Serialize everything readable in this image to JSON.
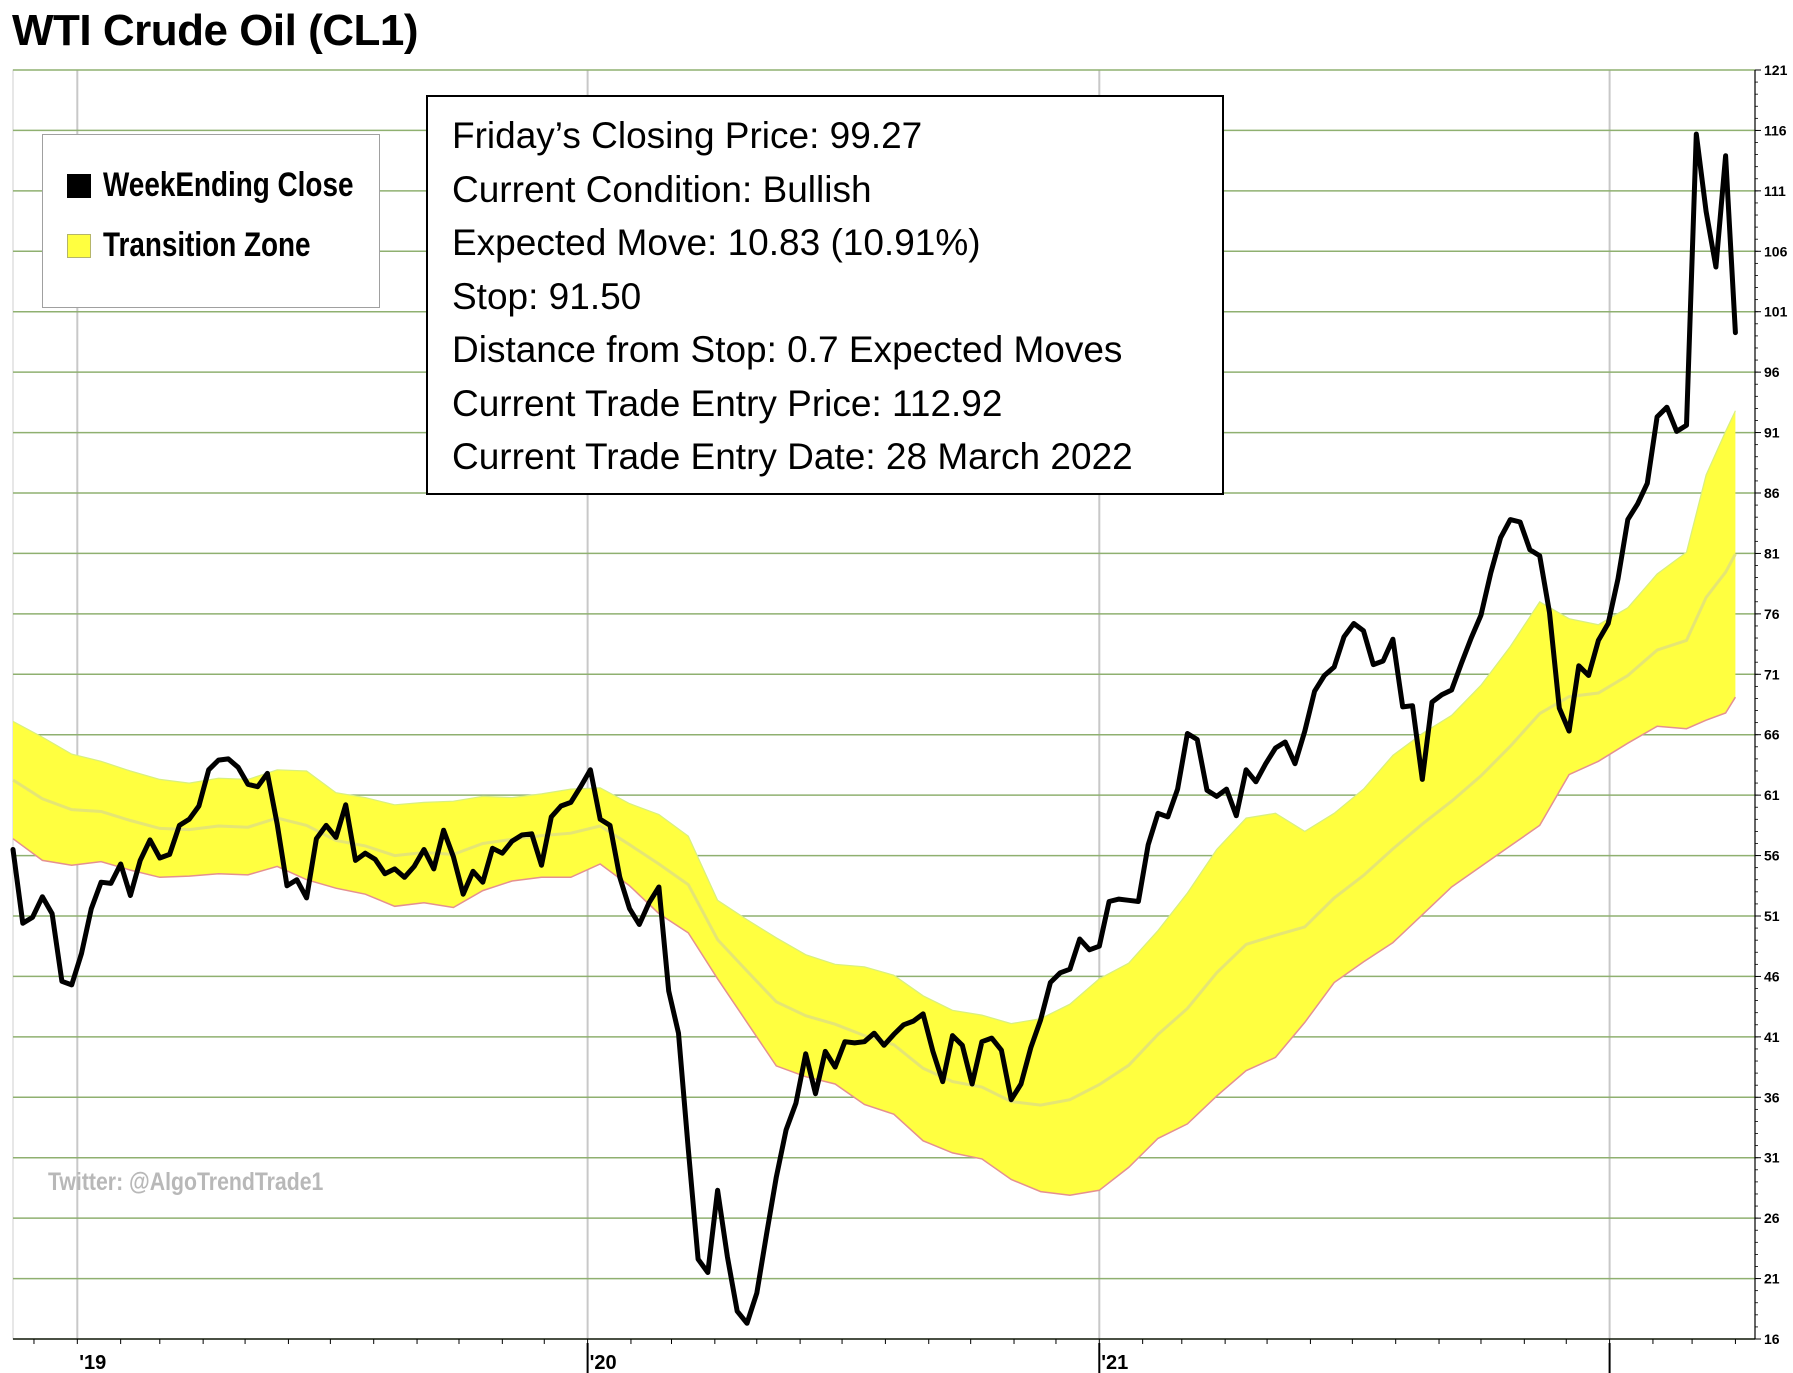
{
  "chart_data": {
    "type": "line",
    "title": "WTI Crude Oil (CL1)",
    "x_tick_labels": [
      "'19",
      "'20",
      "'21"
    ],
    "y_ticks": [
      16,
      21,
      26,
      31,
      36,
      41,
      46,
      51,
      56,
      61,
      66,
      71,
      76,
      81,
      86,
      91,
      96,
      101,
      106,
      111,
      116,
      121
    ],
    "ylim": [
      16,
      121
    ],
    "y_axis_position": "right",
    "grid": true,
    "legend_position": "top-left",
    "x_start": "2018-11-16",
    "x_end": "2022-04-15",
    "series": [
      {
        "name": "WeekEnding Close",
        "color": "#000000",
        "points": [
          [
            "2018-11-16",
            56.5
          ],
          [
            "2018-11-23",
            50.4
          ],
          [
            "2018-11-30",
            50.9
          ],
          [
            "2018-12-07",
            52.6
          ],
          [
            "2018-12-14",
            51.2
          ],
          [
            "2018-12-21",
            45.6
          ],
          [
            "2018-12-28",
            45.3
          ],
          [
            "2019-01-04",
            47.9
          ],
          [
            "2019-01-11",
            51.6
          ],
          [
            "2019-01-18",
            53.8
          ],
          [
            "2019-01-25",
            53.7
          ],
          [
            "2019-02-01",
            55.3
          ],
          [
            "2019-02-08",
            52.7
          ],
          [
            "2019-02-15",
            55.6
          ],
          [
            "2019-02-22",
            57.3
          ],
          [
            "2019-03-01",
            55.8
          ],
          [
            "2019-03-08",
            56.1
          ],
          [
            "2019-03-15",
            58.5
          ],
          [
            "2019-03-22",
            59.0
          ],
          [
            "2019-03-29",
            60.1
          ],
          [
            "2019-04-05",
            63.1
          ],
          [
            "2019-04-12",
            63.9
          ],
          [
            "2019-04-19",
            64.0
          ],
          [
            "2019-04-26",
            63.3
          ],
          [
            "2019-05-03",
            61.9
          ],
          [
            "2019-05-10",
            61.7
          ],
          [
            "2019-05-17",
            62.8
          ],
          [
            "2019-05-24",
            58.6
          ],
          [
            "2019-05-31",
            53.5
          ],
          [
            "2019-06-07",
            54.0
          ],
          [
            "2019-06-14",
            52.5
          ],
          [
            "2019-06-21",
            57.4
          ],
          [
            "2019-06-28",
            58.5
          ],
          [
            "2019-07-05",
            57.5
          ],
          [
            "2019-07-12",
            60.2
          ],
          [
            "2019-07-19",
            55.6
          ],
          [
            "2019-07-26",
            56.2
          ],
          [
            "2019-08-02",
            55.7
          ],
          [
            "2019-08-09",
            54.5
          ],
          [
            "2019-08-16",
            54.9
          ],
          [
            "2019-08-23",
            54.2
          ],
          [
            "2019-08-30",
            55.1
          ],
          [
            "2019-09-06",
            56.5
          ],
          [
            "2019-09-13",
            54.9
          ],
          [
            "2019-09-20",
            58.1
          ],
          [
            "2019-09-27",
            55.9
          ],
          [
            "2019-10-04",
            52.8
          ],
          [
            "2019-10-11",
            54.7
          ],
          [
            "2019-10-18",
            53.8
          ],
          [
            "2019-10-25",
            56.6
          ],
          [
            "2019-11-01",
            56.2
          ],
          [
            "2019-11-08",
            57.2
          ],
          [
            "2019-11-15",
            57.7
          ],
          [
            "2019-11-22",
            57.8
          ],
          [
            "2019-11-29",
            55.2
          ],
          [
            "2019-12-06",
            59.2
          ],
          [
            "2019-12-13",
            60.1
          ],
          [
            "2019-12-20",
            60.4
          ],
          [
            "2019-12-27",
            61.7
          ],
          [
            "2020-01-03",
            63.1
          ],
          [
            "2020-01-10",
            59.0
          ],
          [
            "2020-01-17",
            58.5
          ],
          [
            "2020-01-24",
            54.2
          ],
          [
            "2020-01-31",
            51.6
          ],
          [
            "2020-02-07",
            50.3
          ],
          [
            "2020-02-14",
            52.1
          ],
          [
            "2020-02-21",
            53.4
          ],
          [
            "2020-02-28",
            44.8
          ],
          [
            "2020-03-06",
            41.3
          ],
          [
            "2020-03-13",
            31.7
          ],
          [
            "2020-03-20",
            22.6
          ],
          [
            "2020-03-27",
            21.5
          ],
          [
            "2020-04-03",
            28.3
          ],
          [
            "2020-04-10",
            22.8
          ],
          [
            "2020-04-17",
            18.3
          ],
          [
            "2020-04-24",
            17.3
          ],
          [
            "2020-05-01",
            19.8
          ],
          [
            "2020-05-08",
            24.7
          ],
          [
            "2020-05-15",
            29.4
          ],
          [
            "2020-05-22",
            33.3
          ],
          [
            "2020-05-29",
            35.5
          ],
          [
            "2020-06-05",
            39.6
          ],
          [
            "2020-06-12",
            36.3
          ],
          [
            "2020-06-19",
            39.8
          ],
          [
            "2020-06-26",
            38.5
          ],
          [
            "2020-07-03",
            40.6
          ],
          [
            "2020-07-10",
            40.5
          ],
          [
            "2020-07-17",
            40.6
          ],
          [
            "2020-07-24",
            41.3
          ],
          [
            "2020-07-31",
            40.3
          ],
          [
            "2020-08-07",
            41.2
          ],
          [
            "2020-08-14",
            42.0
          ],
          [
            "2020-08-21",
            42.3
          ],
          [
            "2020-08-28",
            42.9
          ],
          [
            "2020-09-04",
            39.8
          ],
          [
            "2020-09-11",
            37.3
          ],
          [
            "2020-09-18",
            41.1
          ],
          [
            "2020-09-25",
            40.3
          ],
          [
            "2020-10-02",
            37.1
          ],
          [
            "2020-10-09",
            40.6
          ],
          [
            "2020-10-16",
            40.9
          ],
          [
            "2020-10-23",
            39.9
          ],
          [
            "2020-10-30",
            35.8
          ],
          [
            "2020-11-06",
            37.1
          ],
          [
            "2020-11-13",
            40.1
          ],
          [
            "2020-11-20",
            42.4
          ],
          [
            "2020-11-27",
            45.5
          ],
          [
            "2020-12-04",
            46.3
          ],
          [
            "2020-12-11",
            46.6
          ],
          [
            "2020-12-18",
            49.1
          ],
          [
            "2020-12-25",
            48.2
          ],
          [
            "2021-01-01",
            48.5
          ],
          [
            "2021-01-08",
            52.2
          ],
          [
            "2021-01-15",
            52.4
          ],
          [
            "2021-01-22",
            52.3
          ],
          [
            "2021-01-29",
            52.2
          ],
          [
            "2021-02-05",
            56.9
          ],
          [
            "2021-02-12",
            59.5
          ],
          [
            "2021-02-19",
            59.2
          ],
          [
            "2021-02-26",
            61.5
          ],
          [
            "2021-03-05",
            66.1
          ],
          [
            "2021-03-12",
            65.6
          ],
          [
            "2021-03-19",
            61.4
          ],
          [
            "2021-03-26",
            60.9
          ],
          [
            "2021-04-02",
            61.5
          ],
          [
            "2021-04-09",
            59.3
          ],
          [
            "2021-04-16",
            63.1
          ],
          [
            "2021-04-23",
            62.1
          ],
          [
            "2021-04-30",
            63.6
          ],
          [
            "2021-05-07",
            64.9
          ],
          [
            "2021-05-14",
            65.4
          ],
          [
            "2021-05-21",
            63.6
          ],
          [
            "2021-05-28",
            66.3
          ],
          [
            "2021-06-04",
            69.6
          ],
          [
            "2021-06-11",
            70.9
          ],
          [
            "2021-06-18",
            71.6
          ],
          [
            "2021-06-25",
            74.1
          ],
          [
            "2021-07-02",
            75.2
          ],
          [
            "2021-07-09",
            74.6
          ],
          [
            "2021-07-16",
            71.8
          ],
          [
            "2021-07-23",
            72.1
          ],
          [
            "2021-07-30",
            73.9
          ],
          [
            "2021-08-06",
            68.3
          ],
          [
            "2021-08-13",
            68.4
          ],
          [
            "2021-08-20",
            62.3
          ],
          [
            "2021-08-27",
            68.7
          ],
          [
            "2021-09-03",
            69.3
          ],
          [
            "2021-09-10",
            69.7
          ],
          [
            "2021-09-17",
            71.9
          ],
          [
            "2021-09-24",
            74.0
          ],
          [
            "2021-10-01",
            75.9
          ],
          [
            "2021-10-08",
            79.4
          ],
          [
            "2021-10-15",
            82.3
          ],
          [
            "2021-10-22",
            83.8
          ],
          [
            "2021-10-29",
            83.6
          ],
          [
            "2021-11-05",
            81.3
          ],
          [
            "2021-11-12",
            80.8
          ],
          [
            "2021-11-19",
            76.1
          ],
          [
            "2021-11-26",
            68.2
          ],
          [
            "2021-12-03",
            66.3
          ],
          [
            "2021-12-10",
            71.7
          ],
          [
            "2021-12-17",
            70.9
          ],
          [
            "2021-12-24",
            73.8
          ],
          [
            "2021-12-31",
            75.2
          ],
          [
            "2022-01-07",
            78.9
          ],
          [
            "2022-01-14",
            83.8
          ],
          [
            "2022-01-21",
            85.1
          ],
          [
            "2022-01-28",
            86.8
          ],
          [
            "2022-02-04",
            92.3
          ],
          [
            "2022-02-11",
            93.1
          ],
          [
            "2022-02-18",
            91.1
          ],
          [
            "2022-02-25",
            91.6
          ],
          [
            "2022-03-04",
            115.7
          ],
          [
            "2022-03-11",
            109.3
          ],
          [
            "2022-03-18",
            104.7
          ],
          [
            "2022-03-25",
            113.9
          ],
          [
            "2022-04-01",
            99.27
          ]
        ]
      },
      {
        "name": "Transition Zone",
        "color": "#ffff40",
        "points": [
          [
            "2018-11-16",
            57.4,
            67.1
          ],
          [
            "2018-12-07",
            55.6,
            65.8
          ],
          [
            "2018-12-28",
            55.2,
            64.4
          ],
          [
            "2019-01-18",
            55.5,
            63.8
          ],
          [
            "2019-02-08",
            54.8,
            63.0
          ],
          [
            "2019-03-01",
            54.2,
            62.3
          ],
          [
            "2019-03-22",
            54.3,
            62.0
          ],
          [
            "2019-04-12",
            54.5,
            62.4
          ],
          [
            "2019-05-03",
            54.4,
            62.3
          ],
          [
            "2019-05-24",
            55.1,
            63.1
          ],
          [
            "2019-06-14",
            54.0,
            63.0
          ],
          [
            "2019-07-05",
            53.3,
            61.2
          ],
          [
            "2019-07-26",
            52.8,
            60.8
          ],
          [
            "2019-08-16",
            51.8,
            60.2
          ],
          [
            "2019-09-06",
            52.1,
            60.4
          ],
          [
            "2019-09-27",
            51.7,
            60.5
          ],
          [
            "2019-10-18",
            53.1,
            60.9
          ],
          [
            "2019-11-08",
            53.9,
            60.8
          ],
          [
            "2019-11-29",
            54.2,
            61.1
          ],
          [
            "2019-12-20",
            54.2,
            61.5
          ],
          [
            "2020-01-10",
            55.3,
            61.6
          ],
          [
            "2020-01-31",
            53.5,
            60.3
          ],
          [
            "2020-02-21",
            51.2,
            59.4
          ],
          [
            "2020-03-13",
            49.6,
            57.6
          ],
          [
            "2020-04-03",
            45.8,
            52.3
          ],
          [
            "2020-04-24",
            42.2,
            50.7
          ],
          [
            "2020-05-15",
            38.6,
            49.2
          ],
          [
            "2020-06-05",
            37.7,
            47.8
          ],
          [
            "2020-06-26",
            37.1,
            47.0
          ],
          [
            "2020-07-17",
            35.4,
            46.8
          ],
          [
            "2020-08-07",
            34.6,
            46.1
          ],
          [
            "2020-08-28",
            32.4,
            44.4
          ],
          [
            "2020-09-18",
            31.4,
            43.2
          ],
          [
            "2020-10-09",
            30.9,
            42.8
          ],
          [
            "2020-10-30",
            29.2,
            42.1
          ],
          [
            "2020-11-20",
            28.2,
            42.5
          ],
          [
            "2020-12-11",
            27.9,
            43.7
          ],
          [
            "2021-01-01",
            28.3,
            45.8
          ],
          [
            "2021-01-22",
            30.2,
            47.1
          ],
          [
            "2021-02-12",
            32.6,
            49.8
          ],
          [
            "2021-03-05",
            33.8,
            52.9
          ],
          [
            "2021-03-26",
            36.1,
            56.5
          ],
          [
            "2021-04-16",
            38.2,
            59.1
          ],
          [
            "2021-05-07",
            39.3,
            59.5
          ],
          [
            "2021-05-28",
            42.2,
            58.0
          ],
          [
            "2021-06-18",
            45.5,
            59.5
          ],
          [
            "2021-07-09",
            47.2,
            61.5
          ],
          [
            "2021-07-30",
            48.8,
            64.3
          ],
          [
            "2021-08-20",
            51.1,
            66.1
          ],
          [
            "2021-09-10",
            53.4,
            67.6
          ],
          [
            "2021-10-01",
            55.1,
            70.1
          ],
          [
            "2021-10-22",
            56.8,
            73.3
          ],
          [
            "2021-11-12",
            58.5,
            77.0
          ],
          [
            "2021-12-03",
            62.7,
            75.6
          ],
          [
            "2021-12-24",
            63.8,
            75.1
          ],
          [
            "2022-01-14",
            65.3,
            76.5
          ],
          [
            "2022-02-04",
            66.7,
            79.3
          ],
          [
            "2022-02-25",
            66.5,
            81.1
          ],
          [
            "2022-03-11",
            67.2,
            87.5
          ],
          [
            "2022-03-25",
            67.8,
            91.1
          ],
          [
            "2022-04-01",
            69.1,
            92.8
          ]
        ]
      }
    ]
  },
  "legend": {
    "items": [
      {
        "label": "WeekEnding Close",
        "swatch_color": "#000000"
      },
      {
        "label": "Transition Zone",
        "swatch_color": "#ffff40"
      }
    ]
  },
  "info_box": {
    "lines": [
      "Friday’s Closing Price: 99.27",
      "Current Condition: Bullish",
      "Expected Move: 10.83 (10.91%)",
      "Stop: 91.50",
      "Distance from Stop: 0.7 Expected Moves",
      "Current Trade Entry Price: 112.92",
      "Current Trade Entry Date: 28 March 2022"
    ]
  },
  "watermark": "Twitter: @AlgoTrendTrade1",
  "colors": {
    "grid_horizontal": "#8fb070",
    "grid_vertical": "#c8c8c8",
    "band_fill": "#ffff40",
    "band_edge": "#e59090",
    "band_top_edge": "#d8ef80",
    "close_line": "#000000"
  }
}
